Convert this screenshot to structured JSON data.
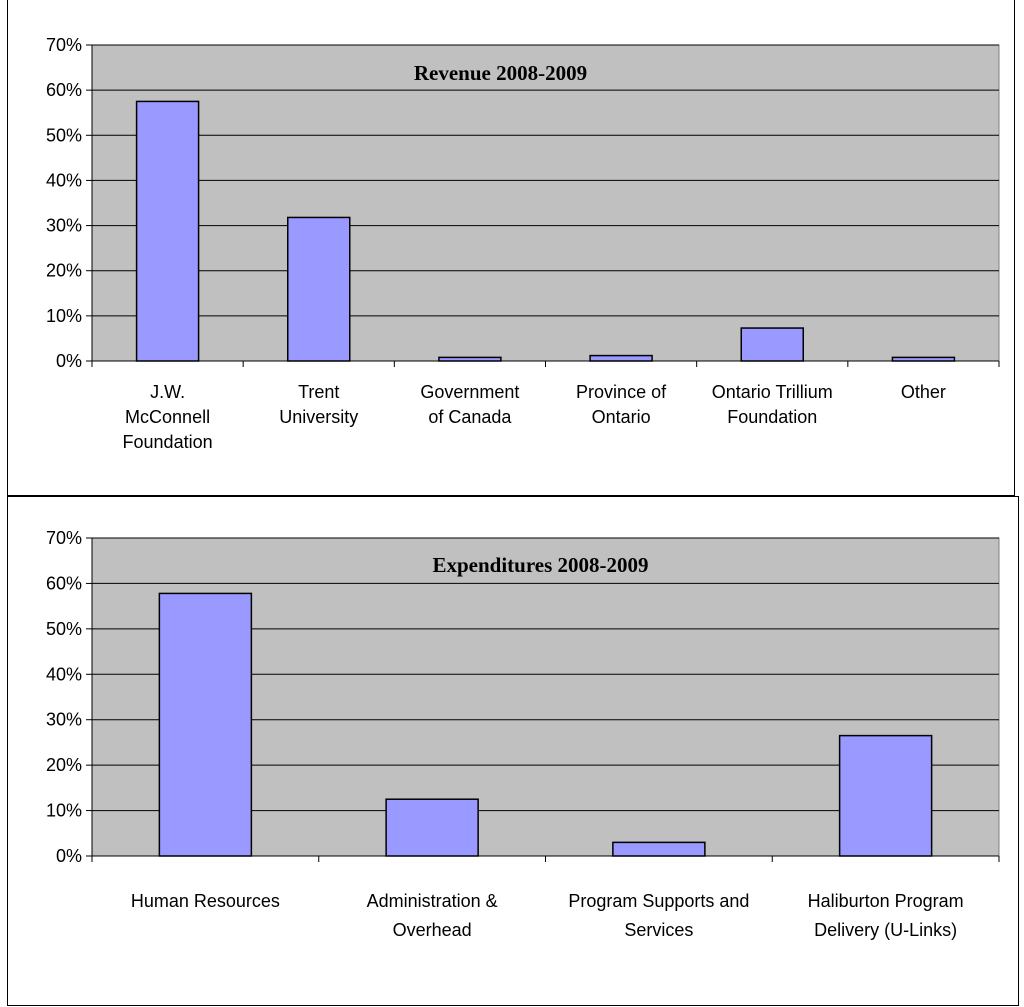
{
  "chart_data": [
    {
      "type": "bar",
      "title": "Revenue 2008-2009",
      "categories": [
        [
          "J.W.",
          "McConnell",
          "Foundation"
        ],
        [
          "Trent",
          "University"
        ],
        [
          "Government",
          "of Canada"
        ],
        [
          "Province of",
          "Ontario"
        ],
        [
          "Ontario Trillium",
          "Foundation"
        ],
        [
          "Other"
        ]
      ],
      "values": [
        57.5,
        31.8,
        0.8,
        1.2,
        7.3,
        0.8
      ],
      "yticks": [
        "0%",
        "10%",
        "20%",
        "30%",
        "40%",
        "50%",
        "60%",
        "70%"
      ],
      "ylim": [
        0,
        70
      ],
      "grid": true,
      "plot_color": "#c0c0c0",
      "bar_color": "#9999ff"
    },
    {
      "type": "bar",
      "title": "Expenditures 2008-2009",
      "categories": [
        [
          "Human Resources"
        ],
        [
          "Administration &",
          "Overhead"
        ],
        [
          "Program Supports and",
          "Services"
        ],
        [
          "Haliburton Program",
          "Delivery (U-Links)"
        ]
      ],
      "values": [
        57.8,
        12.5,
        3.0,
        26.5
      ],
      "yticks": [
        "0%",
        "10%",
        "20%",
        "30%",
        "40%",
        "50%",
        "60%",
        "70%"
      ],
      "ylim": [
        0,
        70
      ],
      "grid": true,
      "plot_color": "#c0c0c0",
      "bar_color": "#9999ff"
    }
  ]
}
